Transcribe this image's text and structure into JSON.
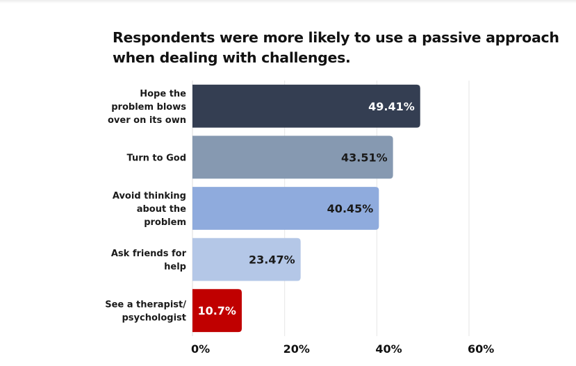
{
  "chart_data": {
    "type": "bar",
    "orientation": "horizontal",
    "title": "Respondents were more likely to use a passive approach when dealing with challenges.",
    "title_lines": [
      "Respondents were more likely to use a passive approach",
      "when dealing with challenges."
    ],
    "xlabel": "",
    "ylabel": "",
    "xlim": [
      0,
      60
    ],
    "grid": true,
    "legend": "none",
    "xticks": [
      "0%",
      "20%",
      "40%",
      "60%"
    ],
    "xtick_values": [
      0,
      20,
      40,
      60
    ],
    "categories": [
      [
        "Hope the",
        "problem blows",
        "over on its own"
      ],
      [
        "Turn to God"
      ],
      [
        "Avoid thinking",
        "about the",
        "problem"
      ],
      [
        "Ask friends for",
        "help"
      ],
      [
        "See a therapist/",
        "psychologist"
      ]
    ],
    "values": [
      49.41,
      43.51,
      40.45,
      23.47,
      10.7
    ],
    "value_labels": [
      "49.41%",
      "43.51%",
      "40.45%",
      "23.47%",
      "10.7%"
    ],
    "colors": [
      "#343e52",
      "#8699b1",
      "#8fabdd",
      "#b4c7e7",
      "#c00000"
    ],
    "label_colors": [
      "#ffffff",
      "#1a1a1a",
      "#1a1a1a",
      "#1a1a1a",
      "#ffffff"
    ]
  }
}
